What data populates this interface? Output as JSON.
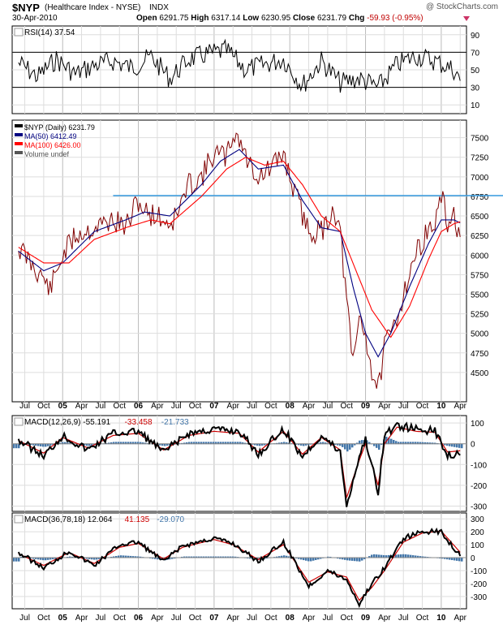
{
  "header": {
    "symbol": "$NYP",
    "description": "(Healthcare Index - NYSE)",
    "exchange": "INDX",
    "watermark": "@ StockCharts.com",
    "date": "30-Apr-2010",
    "open_label": "Open",
    "open": "6291.75",
    "high_label": "High",
    "high": "6317.14",
    "low_label": "Low",
    "low": "6230.95",
    "close_label": "Close",
    "close": "6231.79",
    "chg_label": "Chg",
    "chg": "-59.93 (-0.95%)"
  },
  "colors": {
    "price": "#800000",
    "ma50": "#000080",
    "ma100": "#ff0000",
    "resistance": "#3399dd",
    "histogram": "#4477aa",
    "grid": "#dddddd"
  },
  "chart_data": [
    {
      "type": "line",
      "panel": "RSI",
      "legend": "RSI(14) 37.54",
      "ticks": [
        90,
        70,
        50,
        30,
        10
      ],
      "ylim": [
        0,
        100
      ],
      "reference_lines": [
        70,
        30
      ],
      "last_value": 37.54,
      "series": [
        {
          "name": "RSI(14)",
          "color": "#000000",
          "x": [
            "2004-06",
            "2004-09",
            "2004-12",
            "2005-03",
            "2005-06",
            "2005-09",
            "2005-12",
            "2006-03",
            "2006-06",
            "2006-09",
            "2006-12",
            "2007-03",
            "2007-06",
            "2007-09",
            "2007-12",
            "2008-03",
            "2008-06",
            "2008-09",
            "2008-12",
            "2009-03",
            "2009-06",
            "2009-09",
            "2009-12",
            "2010-03",
            "2010-04"
          ],
          "values": [
            58,
            42,
            62,
            45,
            55,
            60,
            52,
            65,
            40,
            62,
            68,
            72,
            50,
            56,
            62,
            32,
            60,
            35,
            40,
            30,
            56,
            66,
            60,
            50,
            37.54
          ]
        }
      ]
    },
    {
      "type": "line",
      "panel": "Price",
      "title": "$NYP (Daily) 6231.79",
      "legend": [
        {
          "label": "$NYP (Daily) 6231.79",
          "color": "#000000"
        },
        {
          "label": "MA(50) 6412.49",
          "color": "#000080"
        },
        {
          "label": "MA(100) 6426.00",
          "color": "#ff0000"
        },
        {
          "label": "Volume undef",
          "color": "#555555"
        }
      ],
      "ticks": [
        7500,
        7250,
        7000,
        6750,
        6500,
        6250,
        6000,
        5750,
        5500,
        5250,
        5000,
        4750,
        4500
      ],
      "ylim": [
        4250,
        7600
      ],
      "horizontal_line": {
        "value": 6760,
        "x_start": "2005-09"
      },
      "series": [
        {
          "name": "$NYP",
          "color": "#800000",
          "x": [
            "2004-06",
            "2004-08",
            "2004-10",
            "2004-11",
            "2005-01",
            "2005-03",
            "2005-06",
            "2005-09",
            "2005-11",
            "2006-01",
            "2006-02",
            "2006-04",
            "2006-06",
            "2006-07",
            "2006-09",
            "2006-11",
            "2007-01",
            "2007-03",
            "2007-04",
            "2007-05",
            "2007-06",
            "2007-08",
            "2007-10",
            "2007-12",
            "2008-01",
            "2008-02",
            "2008-04",
            "2008-06",
            "2008-07",
            "2008-08",
            "2008-09",
            "2008-10",
            "2008-11",
            "2008-12",
            "2009-01",
            "2009-02",
            "2009-03",
            "2009-04",
            "2009-06",
            "2009-08",
            "2009-10",
            "2009-12",
            "2010-01",
            "2010-02",
            "2010-03",
            "2010-04"
          ],
          "values": [
            6100,
            5900,
            5700,
            5550,
            6000,
            6250,
            6350,
            6450,
            6350,
            6700,
            6550,
            6500,
            6400,
            6500,
            6900,
            7000,
            7300,
            7250,
            7550,
            7500,
            7250,
            7000,
            7100,
            7300,
            7000,
            6750,
            6300,
            6300,
            6450,
            6600,
            6300,
            5400,
            4600,
            5200,
            5000,
            4500,
            4300,
            4800,
            5200,
            5800,
            6200,
            6400,
            6750,
            6400,
            6500,
            6231.79
          ]
        },
        {
          "name": "MA(50)",
          "color": "#000080",
          "x": [
            "2004-06",
            "2004-10",
            "2005-01",
            "2005-06",
            "2005-11",
            "2006-02",
            "2006-06",
            "2006-11",
            "2007-02",
            "2007-05",
            "2007-08",
            "2007-12",
            "2008-03",
            "2008-06",
            "2008-09",
            "2008-11",
            "2009-01",
            "2009-03",
            "2009-05",
            "2009-08",
            "2009-11",
            "2010-01",
            "2010-03",
            "2010-04"
          ],
          "values": [
            6050,
            5800,
            5900,
            6300,
            6450,
            6550,
            6500,
            6900,
            7200,
            7350,
            7100,
            7150,
            6700,
            6350,
            6300,
            5600,
            5000,
            4700,
            5000,
            5600,
            6150,
            6450,
            6450,
            6412.49
          ]
        },
        {
          "name": "MA(100)",
          "color": "#ff0000",
          "x": [
            "2004-06",
            "2004-10",
            "2005-02",
            "2005-06",
            "2005-11",
            "2006-03",
            "2006-06",
            "2006-11",
            "2007-03",
            "2007-06",
            "2007-09",
            "2007-12",
            "2008-03",
            "2008-06",
            "2008-09",
            "2008-11",
            "2009-02",
            "2009-05",
            "2009-08",
            "2009-11",
            "2010-01",
            "2010-03",
            "2010-04"
          ],
          "values": [
            6100,
            5900,
            5900,
            6200,
            6350,
            6450,
            6400,
            6750,
            7100,
            7250,
            7150,
            7200,
            6900,
            6500,
            6300,
            5900,
            5300,
            4950,
            5350,
            5950,
            6300,
            6400,
            6426.0
          ]
        }
      ]
    },
    {
      "type": "line",
      "panel": "MACD",
      "legend": [
        "MACD(12,26,9) -55.191",
        "-33.458",
        "-21.733"
      ],
      "ticks": [
        100,
        0,
        -100,
        -200,
        -300
      ],
      "ylim": [
        -310,
        120
      ],
      "series": [
        {
          "name": "MACD(12,26,9)",
          "color": "#000000",
          "x": [
            "2004-06",
            "2004-10",
            "2005-01",
            "2005-05",
            "2005-09",
            "2006-01",
            "2006-05",
            "2006-09",
            "2007-01",
            "2007-05",
            "2007-08",
            "2007-12",
            "2008-03",
            "2008-06",
            "2008-09",
            "2008-10",
            "2008-12",
            "2009-01",
            "2009-03",
            "2009-04",
            "2009-06",
            "2009-09",
            "2009-12",
            "2010-02",
            "2010-04"
          ],
          "values": [
            20,
            -60,
            40,
            -30,
            50,
            60,
            -40,
            50,
            70,
            60,
            -50,
            70,
            -60,
            40,
            -40,
            -300,
            -60,
            20,
            -230,
            40,
            90,
            70,
            60,
            -50,
            -55.191
          ]
        },
        {
          "name": "Signal",
          "color": "#cc0000",
          "x": [
            "2004-06",
            "2004-10",
            "2005-01",
            "2005-05",
            "2005-09",
            "2006-01",
            "2006-05",
            "2006-09",
            "2007-01",
            "2007-05",
            "2007-08",
            "2007-12",
            "2008-03",
            "2008-06",
            "2008-09",
            "2008-10",
            "2008-12",
            "2009-01",
            "2009-03",
            "2009-04",
            "2009-06",
            "2009-09",
            "2009-12",
            "2010-02",
            "2010-04"
          ],
          "values": [
            15,
            -45,
            30,
            -20,
            40,
            50,
            -30,
            40,
            60,
            50,
            -40,
            60,
            -50,
            30,
            -30,
            -260,
            -80,
            0,
            -200,
            0,
            80,
            60,
            55,
            -40,
            -33.458
          ]
        }
      ]
    },
    {
      "type": "line",
      "panel": "MACD",
      "legend": [
        "MACD(36,78,18) 12.064",
        "41.135",
        "-29.070"
      ],
      "ticks": [
        300,
        200,
        100,
        0,
        -100,
        -200,
        -300
      ],
      "ylim": [
        -370,
        320
      ],
      "series": [
        {
          "name": "MACD(36,78,18)",
          "color": "#000000",
          "x": [
            "2004-06",
            "2004-10",
            "2005-02",
            "2005-06",
            "2005-10",
            "2006-01",
            "2006-05",
            "2006-08",
            "2007-01",
            "2007-04",
            "2007-08",
            "2007-12",
            "2008-04",
            "2008-07",
            "2008-10",
            "2008-12",
            "2009-02",
            "2009-04",
            "2009-07",
            "2009-10",
            "2010-01",
            "2010-04"
          ],
          "values": [
            40,
            -80,
            50,
            -60,
            100,
            120,
            -30,
            90,
            150,
            110,
            -30,
            120,
            -220,
            -100,
            -170,
            -360,
            -200,
            -80,
            150,
            200,
            200,
            12.064
          ]
        },
        {
          "name": "Signal",
          "color": "#cc0000",
          "x": [
            "2004-06",
            "2004-10",
            "2005-02",
            "2005-06",
            "2005-10",
            "2006-01",
            "2006-05",
            "2006-08",
            "2007-01",
            "2007-04",
            "2007-08",
            "2007-12",
            "2008-04",
            "2008-07",
            "2008-10",
            "2008-12",
            "2009-02",
            "2009-04",
            "2009-07",
            "2009-10",
            "2010-01",
            "2010-04"
          ],
          "values": [
            30,
            -60,
            40,
            -45,
            80,
            110,
            -10,
            80,
            140,
            100,
            -15,
            100,
            -190,
            -110,
            -150,
            -330,
            -230,
            -100,
            120,
            190,
            205,
            41.135
          ]
        }
      ]
    }
  ],
  "x_axis": {
    "labels": [
      {
        "text": "Jul",
        "date": "2004-07"
      },
      {
        "text": "Oct",
        "date": "2004-10"
      },
      {
        "text": "05",
        "date": "2005-01",
        "bold": true
      },
      {
        "text": "Apr",
        "date": "2005-04"
      },
      {
        "text": "Jul",
        "date": "2005-07"
      },
      {
        "text": "Oct",
        "date": "2005-10"
      },
      {
        "text": "06",
        "date": "2006-01",
        "bold": true
      },
      {
        "text": "Apr",
        "date": "2006-04"
      },
      {
        "text": "Jul",
        "date": "2006-07"
      },
      {
        "text": "Oct",
        "date": "2006-10"
      },
      {
        "text": "07",
        "date": "2007-01",
        "bold": true
      },
      {
        "text": "Apr",
        "date": "2007-04"
      },
      {
        "text": "Jul",
        "date": "2007-07"
      },
      {
        "text": "Oct",
        "date": "2007-10"
      },
      {
        "text": "08",
        "date": "2008-01",
        "bold": true
      },
      {
        "text": "Apr",
        "date": "2008-04"
      },
      {
        "text": "Jul",
        "date": "2008-07"
      },
      {
        "text": "Oct",
        "date": "2008-10"
      },
      {
        "text": "09",
        "date": "2009-01",
        "bold": true
      },
      {
        "text": "Apr",
        "date": "2009-04"
      },
      {
        "text": "Jul",
        "date": "2009-07"
      },
      {
        "text": "Oct",
        "date": "2009-10"
      },
      {
        "text": "10",
        "date": "2010-01",
        "bold": true
      },
      {
        "text": "Apr",
        "date": "2010-04"
      }
    ],
    "range": [
      "2004-05",
      "2010-05"
    ]
  }
}
